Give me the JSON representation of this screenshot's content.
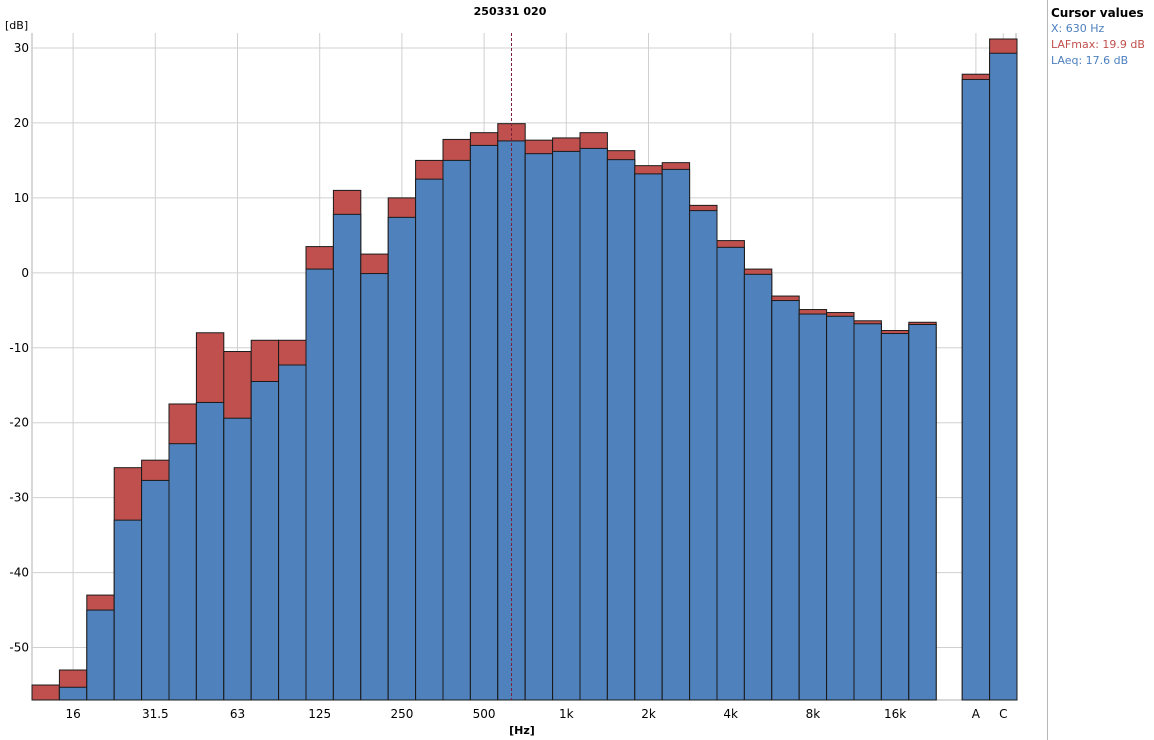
{
  "cursor_panel": {
    "title": "Cursor values",
    "x_text": "X: 630 Hz",
    "lafmax_text": "LAFmax: 19.9 dB",
    "laeq_text": "LAeq: 17.6 dB"
  },
  "colors": {
    "lafmax": "#c0504d",
    "laeq": "#4f81bd",
    "cursor": "#7b1f3c"
  },
  "chart_data": {
    "type": "bar",
    "title": "250331 020",
    "xlabel": "[Hz]",
    "ylabel": "[dB]",
    "ylim": [
      -57,
      32
    ],
    "yticks": [
      30,
      20,
      10,
      0,
      -10,
      -20,
      -30,
      -40,
      -50
    ],
    "grid": true,
    "cursor_band": "630",
    "categories": [
      "12.5",
      "16",
      "20",
      "25",
      "31.5",
      "40",
      "50",
      "63",
      "80",
      "100",
      "125",
      "160",
      "200",
      "250",
      "315",
      "400",
      "500",
      "630",
      "800",
      "1k",
      "1.25k",
      "1.6k",
      "2k",
      "2.5k",
      "3.15k",
      "4k",
      "5k",
      "6.3k",
      "8k",
      "10k",
      "12.5k",
      "16k",
      "20k",
      "A",
      "C"
    ],
    "xtick_labels": [
      "16",
      "31.5",
      "63",
      "125",
      "250",
      "500",
      "1k",
      "2k",
      "4k",
      "8k",
      "16k",
      "A",
      "C"
    ],
    "series": [
      {
        "name": "LAFmax",
        "values": [
          -55,
          -53,
          -43,
          -26,
          -25,
          -17.5,
          -8,
          -10.5,
          -9,
          -9,
          3.5,
          11,
          2.5,
          10,
          15,
          17.8,
          18.7,
          19.9,
          17.7,
          18,
          18.7,
          16.3,
          14.3,
          14.7,
          9,
          4.3,
          0.5,
          -3.1,
          -4.9,
          -5.3,
          -6.4,
          -7.7,
          -6.6,
          26.5,
          31.2
        ]
      },
      {
        "name": "LAeq",
        "values": [
          null,
          -55.3,
          -45,
          -33,
          -27.7,
          -22.8,
          -17.3,
          -19.4,
          -14.5,
          -12.3,
          0.5,
          7.8,
          -0.1,
          7.4,
          12.5,
          15,
          17,
          17.6,
          15.9,
          16.2,
          16.6,
          15.1,
          13.2,
          13.8,
          8.3,
          3.4,
          -0.2,
          -3.7,
          -5.5,
          -5.8,
          -6.8,
          -8.1,
          -6.9,
          25.8,
          29.3
        ]
      }
    ]
  }
}
